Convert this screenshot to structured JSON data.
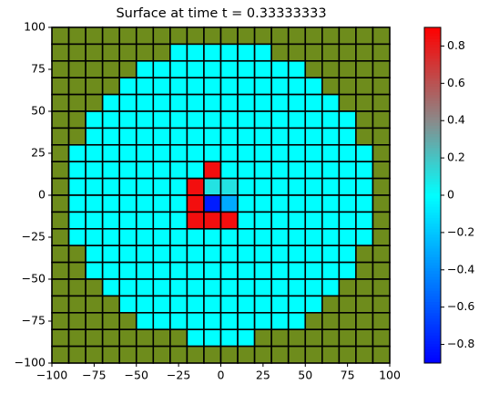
{
  "chart_data": {
    "type": "heatmap",
    "title": "Surface at time t =     0.33333333",
    "xlim": [
      -100,
      100
    ],
    "ylim": [
      -100,
      100
    ],
    "xticks": [
      {
        "value": -100,
        "label": "−100"
      },
      {
        "value": -75,
        "label": "−75"
      },
      {
        "value": -50,
        "label": "−50"
      },
      {
        "value": -25,
        "label": "−25"
      },
      0,
      25,
      50,
      75,
      100
    ],
    "yticks": [
      {
        "value": -100,
        "label": "−100"
      },
      {
        "value": -75,
        "label": "−75"
      },
      {
        "value": -50,
        "label": "−50"
      },
      {
        "value": -25,
        "label": "−25"
      },
      0,
      25,
      50,
      75,
      100
    ],
    "null_color": "#6e8c1c",
    "z": [
      [
        null,
        null,
        null,
        null,
        null,
        null,
        null,
        null,
        null,
        null,
        null,
        null,
        null,
        null,
        null,
        null,
        null,
        null,
        null,
        null
      ],
      [
        null,
        null,
        null,
        null,
        null,
        null,
        null,
        0,
        0,
        0,
        0,
        0,
        0,
        null,
        null,
        null,
        null,
        null,
        null,
        null
      ],
      [
        null,
        null,
        null,
        null,
        null,
        0,
        0,
        0,
        0,
        0,
        0,
        0,
        0,
        0,
        0,
        null,
        null,
        null,
        null,
        null
      ],
      [
        null,
        null,
        null,
        null,
        0,
        0,
        0,
        0,
        0,
        0,
        0,
        0,
        0,
        0,
        0,
        0,
        null,
        null,
        null,
        null
      ],
      [
        null,
        null,
        null,
        0,
        0,
        0,
        0,
        0,
        0,
        0,
        0,
        0,
        0,
        0,
        0,
        0,
        0,
        null,
        null,
        null
      ],
      [
        null,
        null,
        0,
        0,
        0,
        0,
        0,
        0,
        0,
        0,
        0,
        0,
        0,
        0,
        0,
        0,
        0,
        0,
        null,
        null
      ],
      [
        null,
        null,
        0,
        0,
        0,
        0,
        0,
        0,
        0,
        0,
        0,
        0,
        0,
        0,
        0,
        0,
        0,
        0,
        null,
        null
      ],
      [
        null,
        0,
        0,
        0,
        0,
        0,
        0,
        0,
        0,
        0,
        0,
        0,
        0,
        0,
        0,
        0,
        0,
        0,
        0,
        null
      ],
      [
        null,
        0,
        0,
        0,
        0,
        0,
        0,
        0,
        0,
        0.85,
        0,
        0,
        0,
        0,
        0,
        0,
        0,
        0,
        0,
        null
      ],
      [
        null,
        0,
        0,
        0,
        0,
        0,
        0,
        0,
        0.85,
        0.1,
        0.1,
        0,
        0,
        0,
        0,
        0,
        0,
        0,
        0,
        null
      ],
      [
        null,
        0,
        0,
        0,
        0,
        0,
        0,
        0,
        0.85,
        -0.8,
        -0.3,
        0,
        0,
        0,
        0,
        0,
        0,
        0,
        0,
        null
      ],
      [
        null,
        0,
        0,
        0,
        0,
        0,
        0,
        0,
        0.85,
        0.85,
        0.85,
        0,
        0,
        0,
        0,
        0,
        0,
        0,
        0,
        null
      ],
      [
        null,
        0,
        0,
        0,
        0,
        0,
        0,
        0,
        0,
        0,
        0,
        0,
        0,
        0,
        0,
        0,
        0,
        0,
        0,
        null
      ],
      [
        null,
        null,
        0,
        0,
        0,
        0,
        0,
        0,
        0,
        0,
        0,
        0,
        0,
        0,
        0,
        0,
        0,
        0,
        null,
        null
      ],
      [
        null,
        null,
        0,
        0,
        0,
        0,
        0,
        0,
        0,
        0,
        0,
        0,
        0,
        0,
        0,
        0,
        0,
        0,
        null,
        null
      ],
      [
        null,
        null,
        null,
        0,
        0,
        0,
        0,
        0,
        0,
        0,
        0,
        0,
        0,
        0,
        0,
        0,
        0,
        null,
        null,
        null
      ],
      [
        null,
        null,
        null,
        null,
        0,
        0,
        0,
        0,
        0,
        0,
        0,
        0,
        0,
        0,
        0,
        0,
        null,
        null,
        null,
        null
      ],
      [
        null,
        null,
        null,
        null,
        null,
        0,
        0,
        0,
        0,
        0,
        0,
        0,
        0,
        0,
        0,
        null,
        null,
        null,
        null,
        null
      ],
      [
        null,
        null,
        null,
        null,
        null,
        null,
        null,
        null,
        0,
        0,
        0,
        0,
        null,
        null,
        null,
        null,
        null,
        null,
        null,
        null
      ],
      [
        null,
        null,
        null,
        null,
        null,
        null,
        null,
        null,
        null,
        null,
        null,
        null,
        null,
        null,
        null,
        null,
        null,
        null,
        null,
        null
      ]
    ],
    "colorbar": {
      "lim": [
        -0.9,
        0.9
      ],
      "ticks": [
        {
          "value": -0.8,
          "label": "−0.8"
        },
        {
          "value": -0.6,
          "label": "−0.6"
        },
        {
          "value": -0.4,
          "label": "−0.4"
        },
        {
          "value": -0.2,
          "label": "−0.2"
        },
        0.0,
        0.2,
        0.4,
        0.6,
        0.8
      ],
      "colormap": [
        {
          "value": -0.9,
          "color": "#0000ff"
        },
        {
          "value": 0,
          "color": "#00ffff"
        },
        {
          "value": 0.4,
          "color": "#8a8a8a"
        },
        {
          "value": 0.9,
          "color": "#ff0000"
        }
      ]
    }
  }
}
